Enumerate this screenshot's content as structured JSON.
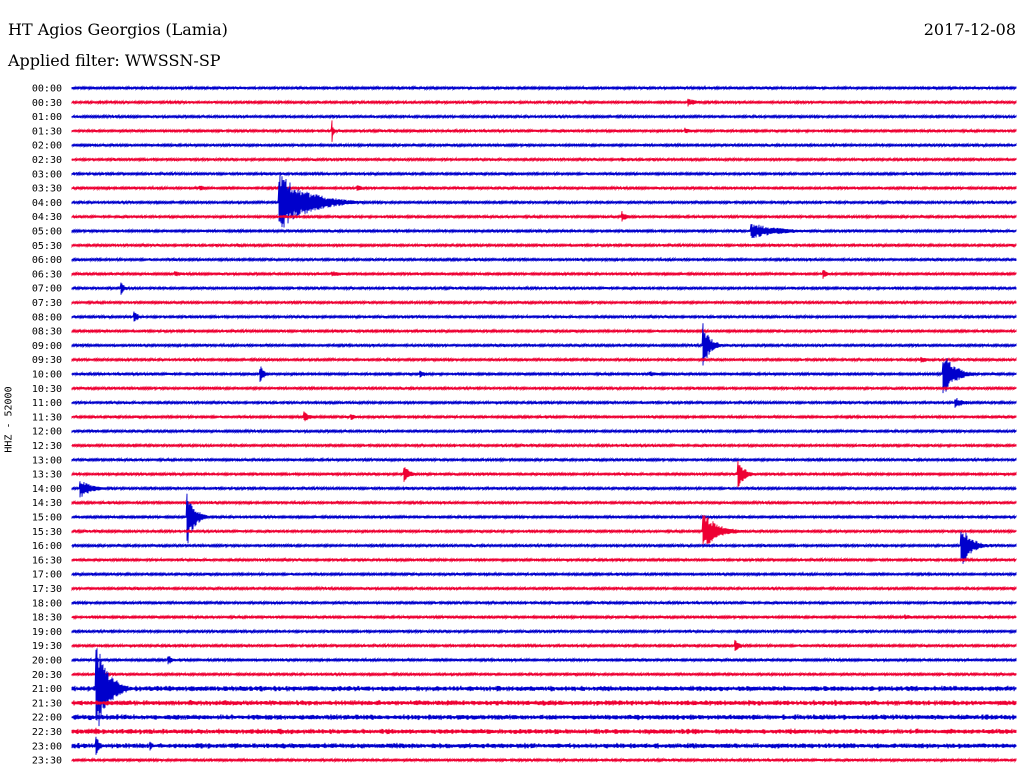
{
  "header": {
    "station": "HT Agios Georgios (Lamia)",
    "date": "2017-12-08",
    "filter": "Applied filter: WWSSN-SP"
  },
  "chart_data": {
    "type": "line",
    "ylabel": "HHZ - 52000",
    "colors": [
      "#0000cc",
      "#ee0033"
    ],
    "rows": [
      "00:00",
      "00:30",
      "01:00",
      "01:30",
      "02:00",
      "02:30",
      "03:00",
      "03:30",
      "04:00",
      "04:30",
      "05:00",
      "05:30",
      "06:00",
      "06:30",
      "07:00",
      "07:30",
      "08:00",
      "08:30",
      "09:00",
      "09:30",
      "10:00",
      "10:30",
      "11:00",
      "11:30",
      "12:00",
      "12:30",
      "13:00",
      "13:30",
      "14:00",
      "14:30",
      "15:00",
      "15:30",
      "16:00",
      "16:30",
      "17:00",
      "17:30",
      "18:00",
      "18:30",
      "19:00",
      "19:30",
      "20:00",
      "20:30",
      "21:00",
      "21:30",
      "22:00",
      "22:30",
      "23:00",
      "23:30"
    ],
    "x_range_minutes": [
      0,
      30
    ],
    "noise": [
      1,
      1,
      1,
      1,
      1,
      1,
      1,
      1,
      1,
      1,
      1,
      1,
      1,
      1,
      1,
      1,
      1,
      1,
      1,
      1,
      1,
      1,
      1,
      1,
      1,
      1,
      1,
      1,
      1,
      1,
      1,
      1,
      1,
      1,
      1,
      1,
      1,
      1,
      1,
      1,
      1,
      1,
      2,
      2,
      2,
      2,
      2,
      1
    ],
    "events": [
      {
        "row": "00:30",
        "minute": 19.6,
        "amplitude": 4,
        "duration": 1.0
      },
      {
        "row": "01:30",
        "minute": 19.5,
        "amplitude": 3,
        "duration": 0.7
      },
      {
        "row": "01:30",
        "minute": 8.3,
        "amplitude": 6,
        "duration": 0.1
      },
      {
        "row": "02:30",
        "minute": 17.5,
        "amplitude": 2,
        "duration": 1.0
      },
      {
        "row": "03:30",
        "minute": 4.1,
        "amplitude": 3,
        "duration": 0.6
      },
      {
        "row": "03:30",
        "minute": 9.1,
        "amplitude": 3,
        "duration": 0.5
      },
      {
        "row": "04:00",
        "minute": 6.6,
        "amplitude": 30,
        "duration": 2.5
      },
      {
        "row": "04:30",
        "minute": 17.5,
        "amplitude": 5,
        "duration": 0.4
      },
      {
        "row": "05:00",
        "minute": 21.6,
        "amplitude": 8,
        "duration": 2.5
      },
      {
        "row": "05:30",
        "minute": 5.3,
        "amplitude": 2,
        "duration": 0.6
      },
      {
        "row": "06:30",
        "minute": 3.3,
        "amplitude": 3,
        "duration": 0.7
      },
      {
        "row": "06:30",
        "minute": 8.3,
        "amplitude": 3,
        "duration": 1.1
      },
      {
        "row": "06:30",
        "minute": 23.9,
        "amplitude": 4,
        "duration": 0.3
      },
      {
        "row": "07:00",
        "minute": 1.6,
        "amplitude": 5,
        "duration": 0.3
      },
      {
        "row": "08:00",
        "minute": 2.0,
        "amplitude": 6,
        "duration": 0.3
      },
      {
        "row": "09:00",
        "minute": 20.1,
        "amplitude": 18,
        "duration": 0.6
      },
      {
        "row": "09:30",
        "minute": 27.0,
        "amplitude": 3,
        "duration": 1.0
      },
      {
        "row": "10:00",
        "minute": 6.0,
        "amplitude": 8,
        "duration": 0.3
      },
      {
        "row": "10:00",
        "minute": 11.1,
        "amplitude": 3,
        "duration": 0.5
      },
      {
        "row": "10:00",
        "minute": 18.4,
        "amplitude": 3,
        "duration": 0.9
      },
      {
        "row": "10:00",
        "minute": 27.7,
        "amplitude": 22,
        "duration": 1.0
      },
      {
        "row": "11:00",
        "minute": 28.1,
        "amplitude": 5,
        "duration": 0.8
      },
      {
        "row": "11:30",
        "minute": 7.4,
        "amplitude": 5,
        "duration": 0.6
      },
      {
        "row": "11:30",
        "minute": 8.9,
        "amplitude": 3,
        "duration": 0.6
      },
      {
        "row": "13:30",
        "minute": 10.6,
        "amplitude": 8,
        "duration": 0.4
      },
      {
        "row": "13:30",
        "minute": 21.2,
        "amplitude": 12,
        "duration": 0.6
      },
      {
        "row": "14:00",
        "minute": 0.3,
        "amplitude": 9,
        "duration": 1.0
      },
      {
        "row": "15:00",
        "minute": 3.7,
        "amplitude": 25,
        "duration": 0.6
      },
      {
        "row": "15:30",
        "minute": 20.1,
        "amplitude": 18,
        "duration": 1.3
      },
      {
        "row": "16:00",
        "minute": 28.3,
        "amplitude": 20,
        "duration": 0.8
      },
      {
        "row": "18:30",
        "minute": 26.5,
        "amplitude": 3,
        "duration": 0.5
      },
      {
        "row": "19:30",
        "minute": 21.1,
        "amplitude": 5,
        "duration": 0.4
      },
      {
        "row": "20:00",
        "minute": 3.1,
        "amplitude": 4,
        "duration": 0.3
      },
      {
        "row": "21:00",
        "minute": 0.8,
        "amplitude": 45,
        "duration": 1.0
      },
      {
        "row": "22:30",
        "minute": 0.8,
        "amplitude": 3,
        "duration": 0.3
      },
      {
        "row": "23:00",
        "minute": 0.8,
        "amplitude": 8,
        "duration": 0.3
      },
      {
        "row": "23:00",
        "minute": 2.5,
        "amplitude": 4,
        "duration": 0.3
      }
    ]
  }
}
